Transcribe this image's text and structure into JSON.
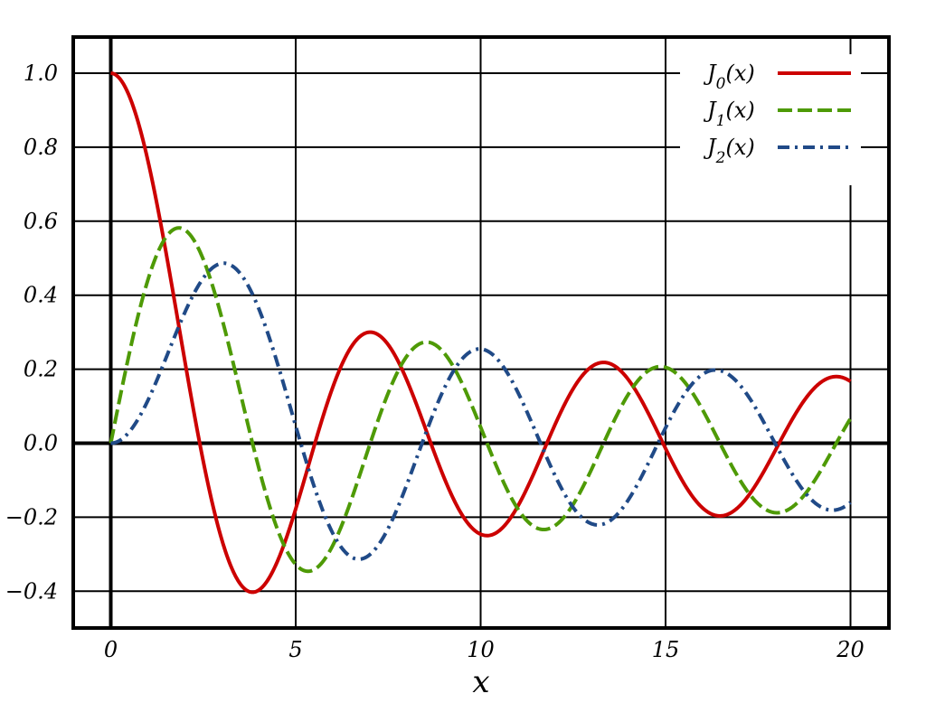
{
  "chart_data": {
    "type": "line",
    "title": "",
    "xlabel": "x",
    "ylabel": "",
    "xlim": [
      -1,
      21
    ],
    "ylim": [
      -0.5,
      1.1
    ],
    "xticks": [
      0,
      5,
      10,
      15,
      20
    ],
    "xtick_labels": [
      "0",
      "5",
      "10",
      "15",
      "20"
    ],
    "yticks": [
      -0.4,
      -0.2,
      0.0,
      0.2,
      0.4,
      0.6,
      0.8,
      1.0
    ],
    "ytick_labels": [
      "−0.4",
      "−0.2",
      "0.0",
      "0.2",
      "0.4",
      "0.6",
      "0.8",
      "1.0"
    ],
    "grid": true,
    "legend_position": "top-right",
    "x_range": [
      0,
      20
    ],
    "series": [
      {
        "name": "J0(x)",
        "base": "J",
        "sub": "0",
        "arg": "(x)",
        "order": 0,
        "color": "#cc0000",
        "style": "solid",
        "extrema": [
          {
            "x": 0.0,
            "y": 1.0
          },
          {
            "x": 3.832,
            "y": -0.403
          },
          {
            "x": 7.016,
            "y": 0.3
          },
          {
            "x": 10.173,
            "y": -0.25
          },
          {
            "x": 13.324,
            "y": 0.218
          },
          {
            "x": 16.471,
            "y": -0.197
          },
          {
            "x": 19.616,
            "y": 0.18
          }
        ]
      },
      {
        "name": "J1(x)",
        "base": "J",
        "sub": "1",
        "arg": "(x)",
        "order": 1,
        "color": "#4e9a06",
        "style": "dashed",
        "extrema": [
          {
            "x": 1.841,
            "y": 0.582
          },
          {
            "x": 5.331,
            "y": -0.346
          },
          {
            "x": 8.536,
            "y": 0.273
          },
          {
            "x": 11.706,
            "y": -0.233
          },
          {
            "x": 14.864,
            "y": 0.207
          },
          {
            "x": 18.016,
            "y": -0.188
          }
        ]
      },
      {
        "name": "J2(x)",
        "base": "J",
        "sub": "2",
        "arg": "(x)",
        "order": 2,
        "color": "#204a87",
        "style": "dashdot",
        "extrema": [
          {
            "x": 3.054,
            "y": 0.486
          },
          {
            "x": 6.706,
            "y": -0.314
          },
          {
            "x": 9.969,
            "y": 0.254
          },
          {
            "x": 13.17,
            "y": -0.22
          },
          {
            "x": 16.348,
            "y": 0.197
          },
          {
            "x": 19.513,
            "y": -0.18
          }
        ]
      }
    ]
  }
}
